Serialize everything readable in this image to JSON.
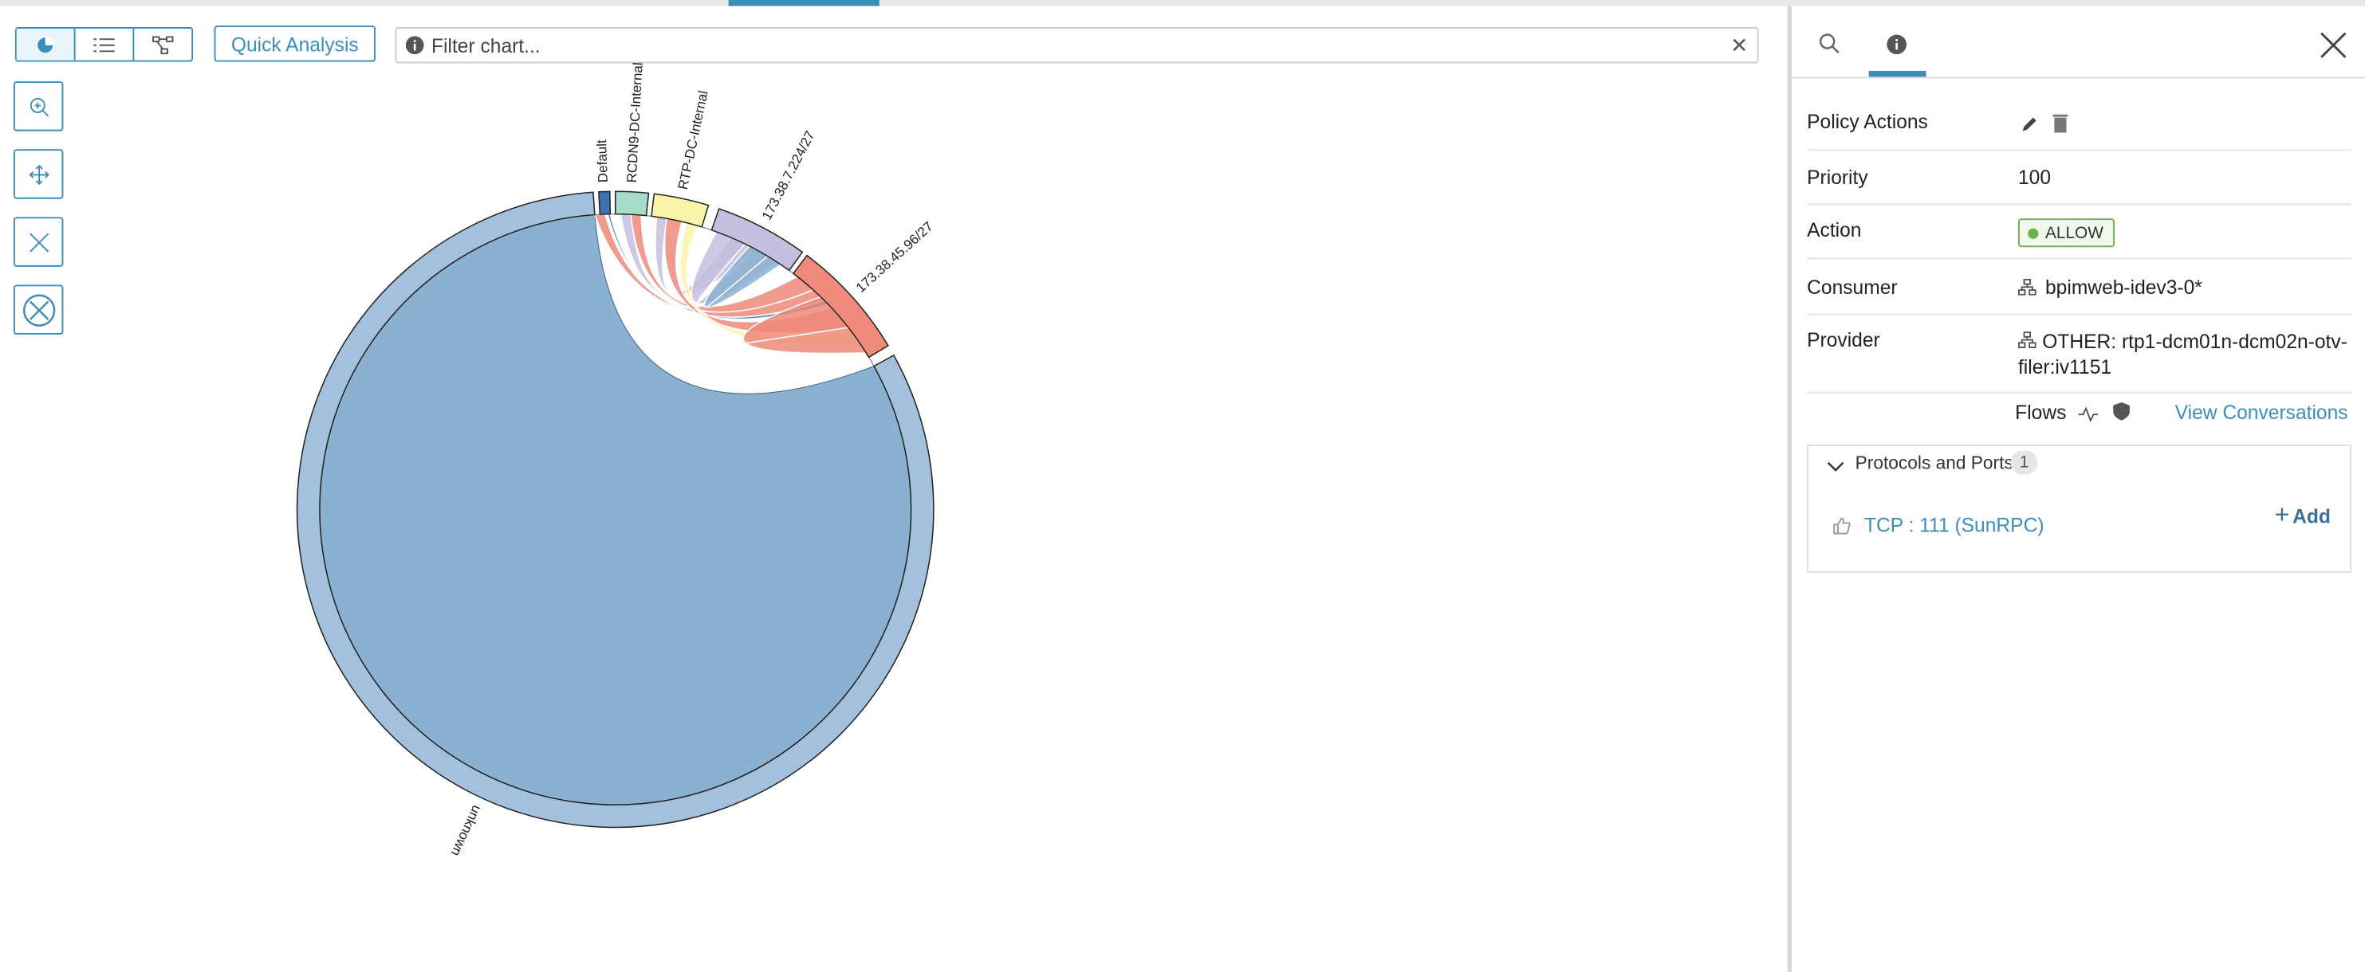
{
  "toolbar": {
    "quick_analysis": "Quick Analysis",
    "filter_placeholder": "Filter chart..."
  },
  "chord": {
    "labels": [
      "Default",
      "RCDN9-DC-Internal",
      "RTP-DC-Internal",
      "173.38.7.224/27",
      "173.38.45.96/27",
      "unknown"
    ]
  },
  "panel": {
    "rows": [
      {
        "label": "Policy Actions"
      },
      {
        "label": "Priority",
        "value": "100"
      },
      {
        "label": "Action",
        "value": "ALLOW"
      },
      {
        "label": "Consumer",
        "value": "bpimweb-idev3-0*"
      },
      {
        "label": "Provider",
        "value": "OTHER: rtp1-dcm01n-dcm02n-otv-filer:iv1151"
      }
    ],
    "flows": "Flows",
    "view_conversations": "View Conversations",
    "protocols": {
      "title": "Protocols and Ports",
      "count": "1",
      "add": "Add",
      "items": [
        "TCP : 111 (SunRPC)"
      ]
    }
  }
}
